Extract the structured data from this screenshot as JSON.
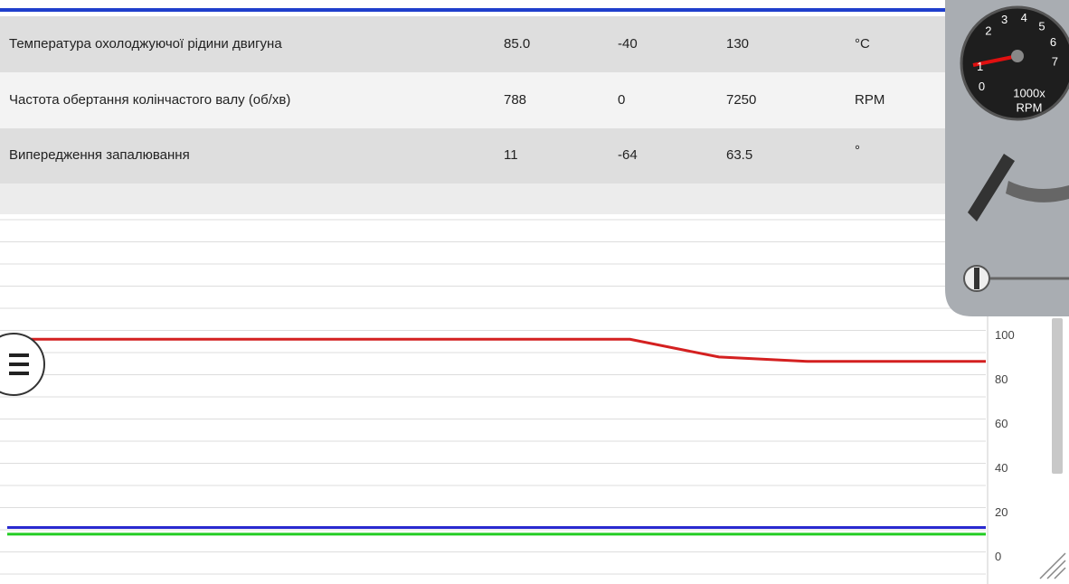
{
  "table": {
    "rows": [
      [
        "Температура охолоджуючої рідини двигуна",
        "85.0",
        "-40",
        "130",
        "°C"
      ],
      [
        "Частота обертання колінчастого валу (об/хв)",
        "788",
        "0",
        "7250",
        "RPM"
      ],
      [
        "Випередження запалювання",
        "11",
        "-64",
        "63.5",
        "°"
      ]
    ]
  },
  "gauge": {
    "labels": [
      "0",
      "1",
      "2",
      "3",
      "4",
      "5",
      "6",
      "7"
    ],
    "unit_top": "1000x",
    "unit_bottom": "RPM"
  },
  "chart_data": {
    "type": "line",
    "ylim": [
      -10,
      150
    ],
    "yticks": [
      0,
      20,
      40,
      60,
      80,
      100
    ],
    "yminor": [
      -10,
      10,
      30,
      50,
      70,
      90,
      110,
      120,
      130,
      140,
      150
    ],
    "grid": true,
    "series": [
      {
        "color": "#d42020",
        "values": [
          96,
          96,
          96,
          96,
          96,
          96,
          96,
          96,
          88,
          86,
          86,
          86
        ]
      },
      {
        "color": "#2a2ad0",
        "values": [
          11,
          11,
          11,
          11,
          11,
          11,
          11,
          11,
          11,
          11,
          11,
          11
        ]
      },
      {
        "color": "#22cc22",
        "values": [
          8,
          8,
          8,
          8,
          8,
          8,
          8,
          8,
          8,
          8,
          8,
          8
        ]
      }
    ]
  }
}
